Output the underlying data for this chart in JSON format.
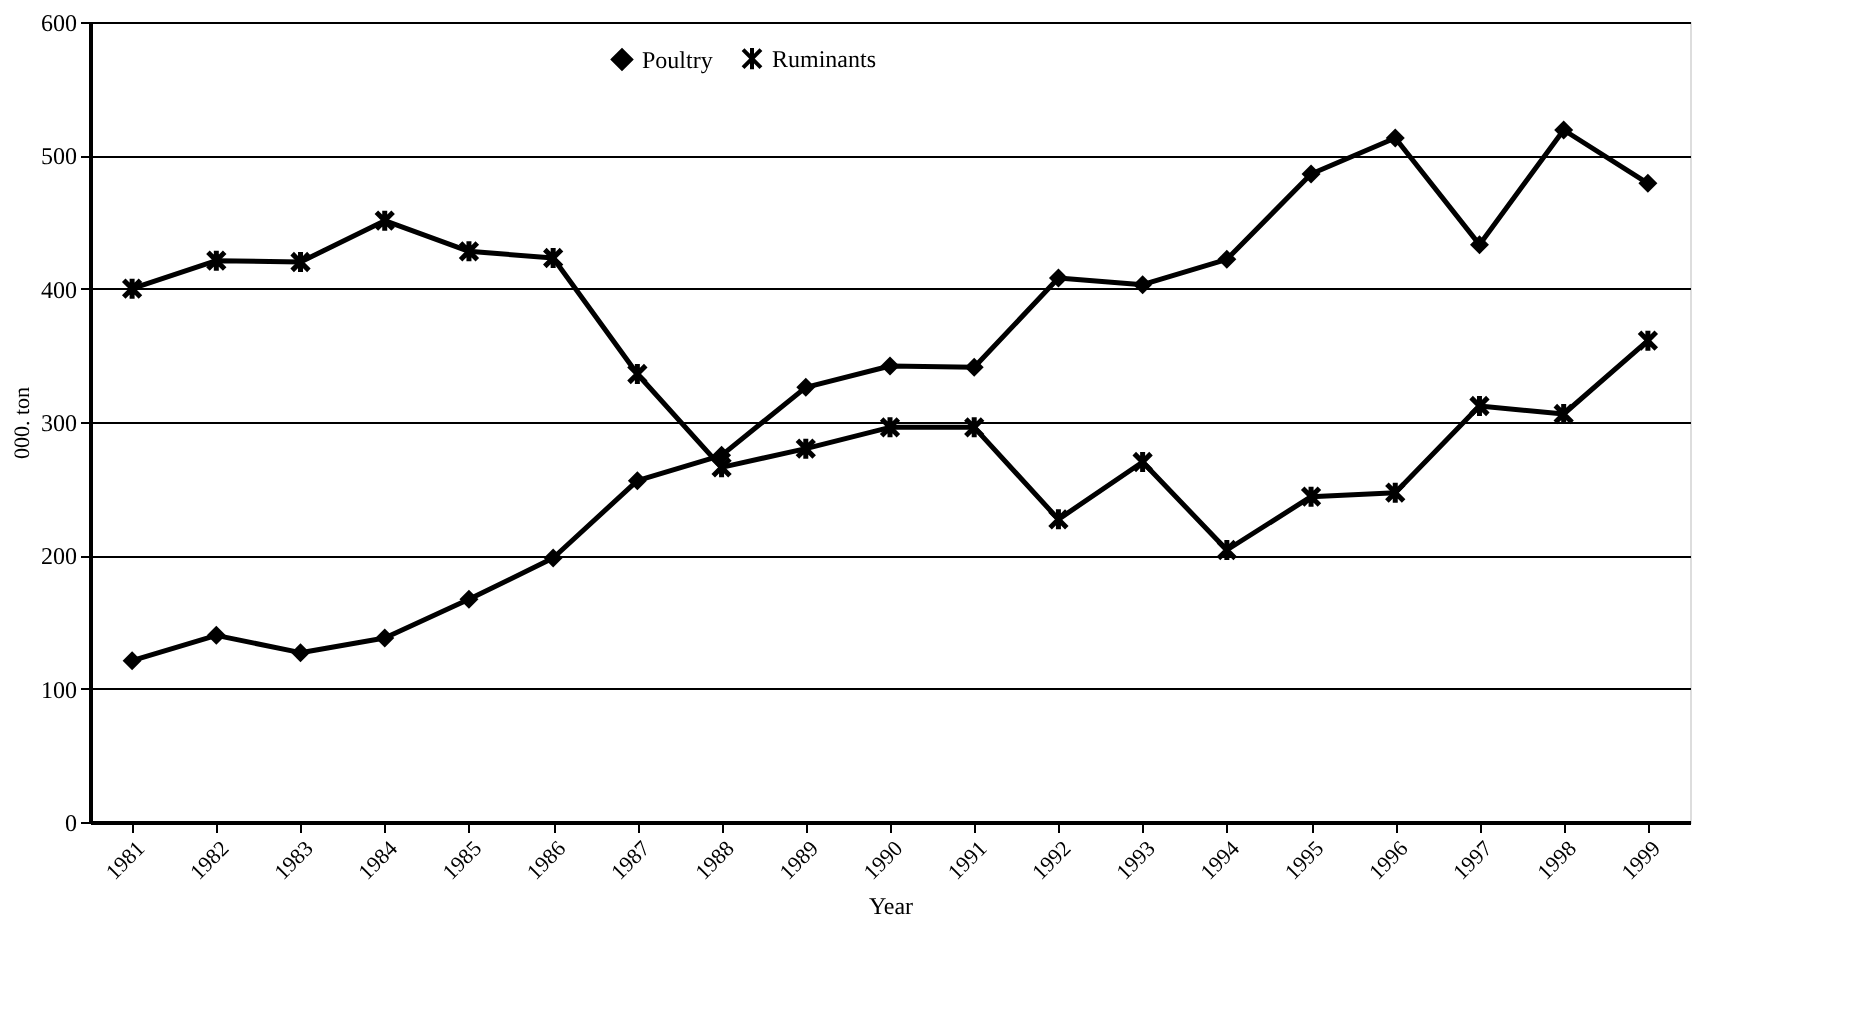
{
  "chart_data": {
    "type": "line",
    "xlabel": "Year",
    "ylabel": "000. ton",
    "categories": [
      "1981",
      "1982",
      "1983",
      "1984",
      "1985",
      "1986",
      "1987",
      "1988",
      "1989",
      "1990",
      "1991",
      "1992",
      "1993",
      "1994",
      "1995",
      "1996",
      "1997",
      "1998",
      "1999"
    ],
    "series": [
      {
        "name": "Poultry",
        "color": "#000000",
        "marker": "diamond",
        "values": [
          121,
          140,
          127,
          138,
          167,
          198,
          256,
          275,
          326,
          342,
          341,
          408,
          403,
          422,
          486,
          513,
          433,
          519,
          479
        ]
      },
      {
        "name": "Ruminants",
        "color": "#000000",
        "marker": "cross",
        "values": [
          400,
          421,
          420,
          451,
          428,
          423,
          336,
          266,
          280,
          296,
          296,
          227,
          270,
          204,
          244,
          247,
          312,
          306,
          361
        ]
      }
    ],
    "ylim": [
      0,
      600
    ],
    "yticks": [
      0,
      100,
      200,
      300,
      400,
      500,
      600
    ],
    "grid": "y",
    "legend": "top",
    "line_style": "solid"
  }
}
